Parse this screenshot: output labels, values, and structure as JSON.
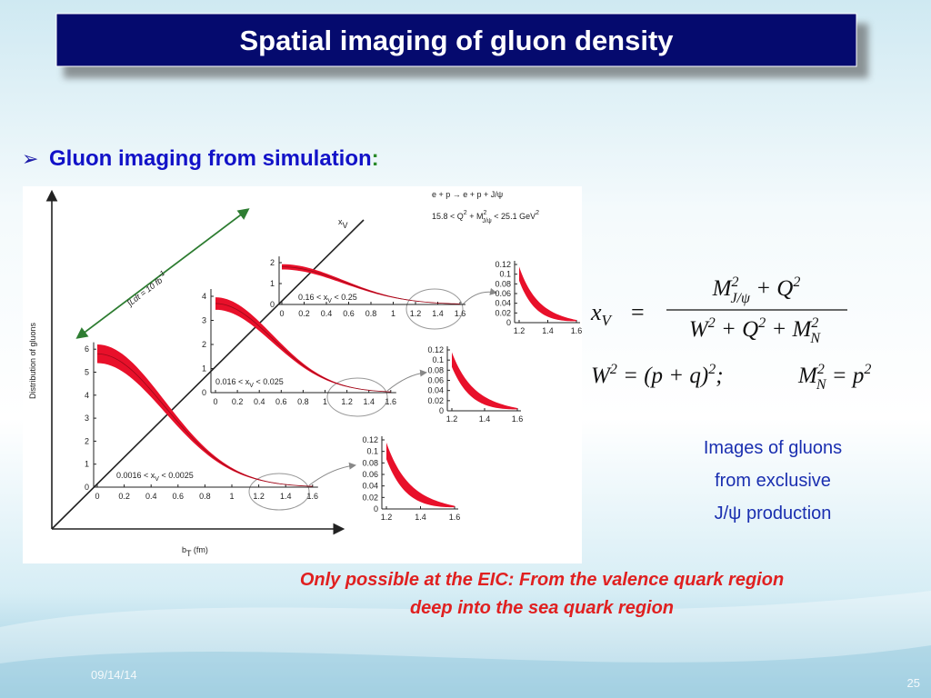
{
  "header": {
    "title": "Spatial imaging of gluon density"
  },
  "bullet": {
    "marker": "➢",
    "text": "Gluon imaging from simulation",
    "colon": ":"
  },
  "figure": {
    "reaction": "e + p → e + p + J/ψ",
    "kinematics": [
      "15.8 < Q",
      "2",
      " + M",
      "2",
      "J/ψ",
      " < 25.1 GeV",
      "2"
    ],
    "y_axis_label": "Distribution of gluons",
    "x_axis_label": [
      "b",
      "T",
      " (fm)"
    ],
    "diagonal_label": [
      "x",
      "V"
    ],
    "luminosity_label": [
      "∫Ldt = 10 fb",
      "-1"
    ],
    "panels": [
      {
        "range_label": [
          "0.0016 < x",
          "V",
          " < 0.0025"
        ],
        "y_ticks": [
          "0",
          "1",
          "2",
          "3",
          "4",
          "5",
          "6"
        ],
        "x_ticks": [
          "0",
          "0.2",
          "0.4",
          "0.6",
          "0.8",
          "1",
          "1.2",
          "1.4",
          "1.6"
        ]
      },
      {
        "range_label": [
          "0.016 < x",
          "V",
          " < 0.025"
        ],
        "y_ticks": [
          "0",
          "1",
          "2",
          "3",
          "4"
        ],
        "x_ticks": [
          "0",
          "0.2",
          "0.4",
          "0.6",
          "0.8",
          "1",
          "1.2",
          "1.4",
          "1.6"
        ]
      },
      {
        "range_label": [
          "0.16 < x",
          "V",
          " < 0.25"
        ],
        "y_ticks": [
          "0",
          "1",
          "2"
        ],
        "x_ticks": [
          "0",
          "0.2",
          "0.4",
          "0.6",
          "0.8",
          "1",
          "1.2",
          "1.4",
          "1.6"
        ]
      }
    ],
    "insets": [
      {
        "y_ticks": [
          "0",
          "0.02",
          "0.04",
          "0.06",
          "0.08",
          "0.1",
          "0.12"
        ],
        "x_ticks": [
          "1.2",
          "1.4",
          "1.6"
        ]
      },
      {
        "y_ticks": [
          "0",
          "0.02",
          "0.04",
          "0.06",
          "0.08",
          "0.1",
          "0.12"
        ],
        "x_ticks": [
          "1.2",
          "1.4",
          "1.6"
        ]
      },
      {
        "y_ticks": [
          "0",
          "0.02",
          "0.04",
          "0.06",
          "0.08",
          "0.1",
          "0.12"
        ],
        "x_ticks": [
          "1.2",
          "1.4",
          "1.6"
        ]
      }
    ]
  },
  "formulas": {
    "xv": {
      "lhs": "x",
      "lhs_sub": "V",
      "eq": "=",
      "numerator": [
        "M",
        "2",
        "J/ψ",
        " + Q",
        "2"
      ],
      "denominator": [
        "W",
        "2",
        " + Q",
        "2",
        " + M",
        "2",
        "N"
      ]
    },
    "w": [
      "W",
      "2",
      " = (p + q)",
      "2",
      ";"
    ],
    "mn": [
      "M",
      "2",
      "N",
      " = p",
      "2"
    ]
  },
  "caption": [
    "Images of gluons",
    "from exclusive",
    "J/ψ production"
  ],
  "note": [
    "Only possible at the EIC: From the valence quark region",
    "deep into the sea quark region"
  ],
  "footer": {
    "date": "09/14/14",
    "page": "25"
  }
}
